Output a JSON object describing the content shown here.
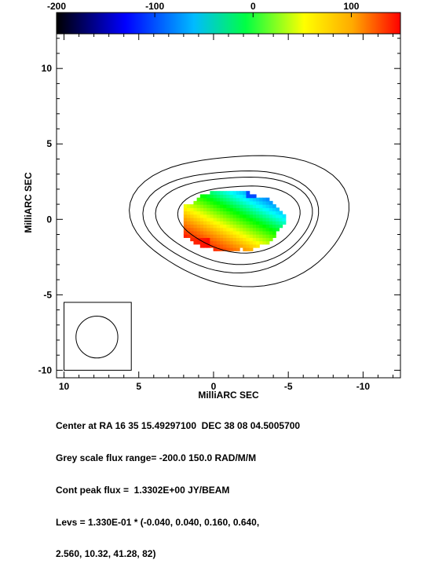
{
  "chart_data": {
    "type": "heatmap",
    "xlabel": "MilliARC SEC",
    "ylabel": "MilliARC SEC",
    "xlim": [
      10.5,
      -12.5
    ],
    "ylim": [
      -10.5,
      12.3
    ],
    "x_ticks": [
      10,
      5,
      0,
      -5,
      -10
    ],
    "x_tick_labels": [
      "10",
      "5",
      "0",
      "-5",
      "-10"
    ],
    "y_ticks": [
      10,
      5,
      0,
      -5,
      -10
    ],
    "y_tick_labels": [
      "10",
      "5",
      "0",
      "-5",
      "-10"
    ],
    "colorbar": {
      "range": [
        -200,
        150
      ],
      "ticks": [
        -200,
        -100,
        0,
        100
      ],
      "tick_labels": [
        "-200",
        "-100",
        "0",
        "100"
      ],
      "colors": [
        "#000000",
        "#0000ff",
        "#00ffff",
        "#00ff00",
        "#ffff00",
        "#ff0000"
      ]
    },
    "contours": [
      {
        "level": 0.64,
        "cx": -1.8,
        "cy": 0.1,
        "rx": 3.9,
        "ry": 2.3
      },
      {
        "level": 2.56,
        "cx": -1.5,
        "cy": 0.05,
        "rx": 5.0,
        "ry": 3.0
      },
      {
        "level": 0.16,
        "cx": -1.3,
        "cy": 0.0,
        "rx": 5.6,
        "ry": 3.5
      },
      {
        "level": 0.04,
        "cx": -1.9,
        "cy": 0.1,
        "rx": 7.0,
        "ry": 4.5
      }
    ],
    "rm_blob": {
      "x_range": [
        2.0,
        -5.5
      ],
      "y_range": [
        -2.3,
        2.2
      ],
      "center_x": -1.0,
      "center_y": -0.2,
      "rx": 3.5,
      "ry": 2.0
    },
    "beam": {
      "x_range": [
        10.0,
        5.5
      ],
      "y_range": [
        -10.0,
        -5.5
      ],
      "cx": 7.8,
      "cy": -7.8,
      "r": 1.4
    }
  },
  "caption": {
    "line1": "Center at RA 16 35 15.49297100  DEC 38 08 04.5005700",
    "line2": "Grey scale flux range= -200.0 150.0 RAD/M/M",
    "line3": "Cont peak flux =  1.3302E+00 JY/BEAM",
    "line4": "Levs = 1.330E-01 * (-0.040, 0.040, 0.160, 0.640,",
    "line5": "2.560, 10.32, 41.28, 82)"
  }
}
